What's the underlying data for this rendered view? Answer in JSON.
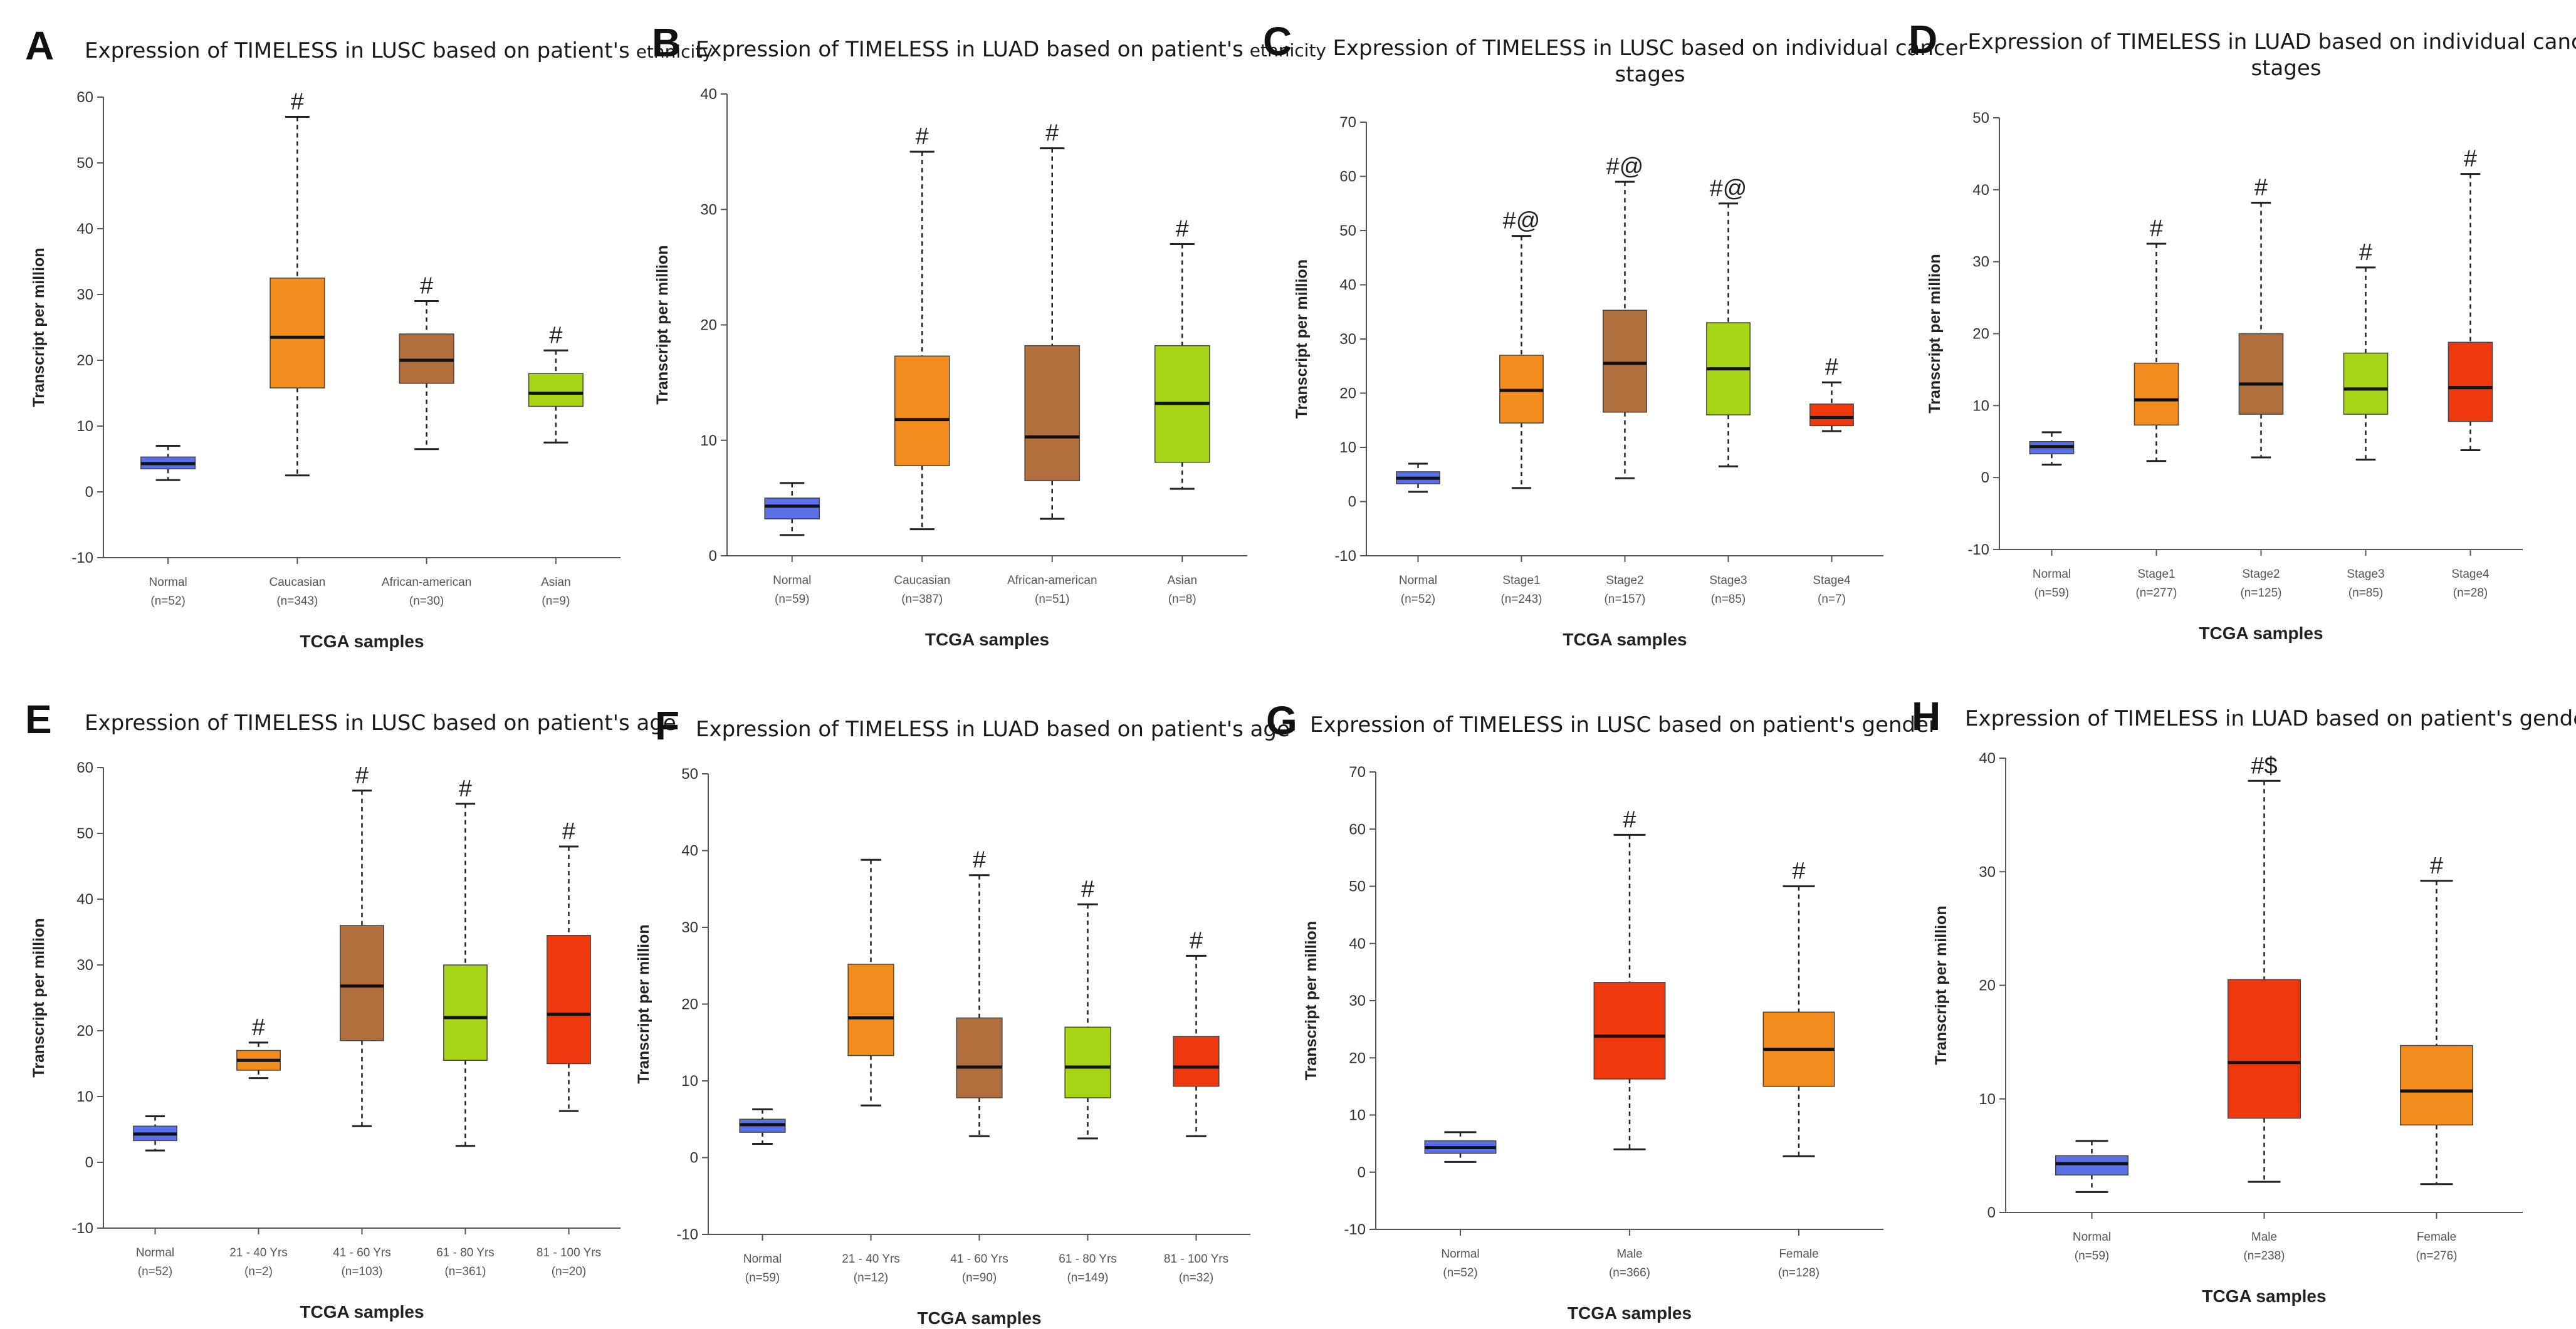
{
  "chart_data": [
    {
      "panel": "A",
      "title": "Expression of TIMELESS in LUSC based on patient's",
      "title_suffix": "ethnicity",
      "type": "box",
      "ylabel": "Transcript per million",
      "xlabel": "TCGA samples",
      "ylim": [
        -10,
        60
      ],
      "yticks": [
        -10,
        0,
        10,
        20,
        30,
        40,
        50,
        60
      ],
      "categories": [
        {
          "name": "Normal",
          "n": "(n=52)",
          "whisker_low": 1.8,
          "q1": 3.5,
          "median": 4.3,
          "q3": 5.3,
          "whisker_high": 7,
          "color": "#5b6fe6",
          "annotation": ""
        },
        {
          "name": "Caucasian",
          "n": "(n=343)",
          "whisker_low": 2.5,
          "q1": 15.8,
          "median": 23.5,
          "q3": 32.5,
          "whisker_high": 57,
          "color": "#f28c1c",
          "annotation": "#"
        },
        {
          "name": "African-american",
          "n": "(n=30)",
          "whisker_low": 6.5,
          "q1": 16.5,
          "median": 20,
          "q3": 24,
          "whisker_high": 29,
          "color": "#b06f3c",
          "annotation": "#"
        },
        {
          "name": "Asian",
          "n": "(n=9)",
          "whisker_low": 7.5,
          "q1": 13,
          "median": 15,
          "q3": 18,
          "whisker_high": 21.5,
          "color": "#a6d416",
          "annotation": "#"
        }
      ]
    },
    {
      "panel": "B",
      "title": "Expression of TIMELESS in LUAD based on patient's",
      "title_suffix": "ethnicity",
      "type": "box",
      "ylabel": "Transcript per million",
      "xlabel": "TCGA samples",
      "ylim": [
        0,
        40
      ],
      "yticks": [
        0,
        10,
        20,
        30,
        40
      ],
      "categories": [
        {
          "name": "Normal",
          "n": "(n=59)",
          "whisker_low": 1.8,
          "q1": 3.2,
          "median": 4.3,
          "q3": 5,
          "whisker_high": 6.3,
          "color": "#5b6fe6",
          "annotation": ""
        },
        {
          "name": "Caucasian",
          "n": "(n=387)",
          "whisker_low": 2.3,
          "q1": 7.8,
          "median": 11.8,
          "q3": 17.3,
          "whisker_high": 35,
          "color": "#f28c1c",
          "annotation": "#"
        },
        {
          "name": "African-american",
          "n": "(n=51)",
          "whisker_low": 3.2,
          "q1": 6.5,
          "median": 10.3,
          "q3": 18.2,
          "whisker_high": 35.3,
          "color": "#b06f3c",
          "annotation": "#"
        },
        {
          "name": "Asian",
          "n": "(n=8)",
          "whisker_low": 5.8,
          "q1": 8.1,
          "median": 13.2,
          "q3": 18.2,
          "whisker_high": 27,
          "color": "#a6d416",
          "annotation": "#"
        }
      ]
    },
    {
      "panel": "C",
      "title": "Expression of TIMELESS in LUSC based on individual cancer",
      "title_line2": "stages",
      "type": "box",
      "ylabel": "Transcript per million",
      "xlabel": "TCGA samples",
      "ylim": [
        -10,
        70
      ],
      "yticks": [
        -10,
        0,
        10,
        20,
        30,
        40,
        50,
        60,
        70
      ],
      "categories": [
        {
          "name": "Normal",
          "n": "(n=52)",
          "whisker_low": 1.8,
          "q1": 3.3,
          "median": 4.3,
          "q3": 5.5,
          "whisker_high": 7,
          "color": "#5b6fe6",
          "annotation": ""
        },
        {
          "name": "Stage1",
          "n": "(n=243)",
          "whisker_low": 2.5,
          "q1": 14.5,
          "median": 20.5,
          "q3": 27,
          "whisker_high": 49,
          "color": "#f28c1c",
          "annotation": "#@"
        },
        {
          "name": "Stage2",
          "n": "(n=157)",
          "whisker_low": 4.3,
          "q1": 16.5,
          "median": 25.5,
          "q3": 35.3,
          "whisker_high": 59,
          "color": "#b06f3c",
          "annotation": "#@"
        },
        {
          "name": "Stage3",
          "n": "(n=85)",
          "whisker_low": 6.5,
          "q1": 16,
          "median": 24.5,
          "q3": 33,
          "whisker_high": 55,
          "color": "#a6d416",
          "annotation": "#@"
        },
        {
          "name": "Stage4",
          "n": "(n=7)",
          "whisker_low": 13,
          "q1": 14,
          "median": 15.5,
          "q3": 18,
          "whisker_high": 22,
          "color": "#f0380e",
          "annotation": "#"
        }
      ]
    },
    {
      "panel": "D",
      "title": "Expression of TIMELESS in LUAD based on individual cancer",
      "title_line2": "stages",
      "type": "box",
      "ylabel": "Transcript per million",
      "xlabel": "TCGA samples",
      "ylim": [
        -10,
        50
      ],
      "yticks": [
        -10,
        0,
        10,
        20,
        30,
        40,
        50
      ],
      "categories": [
        {
          "name": "Normal",
          "n": "(n=59)",
          "whisker_low": 1.8,
          "q1": 3.3,
          "median": 4.3,
          "q3": 5,
          "whisker_high": 6.3,
          "color": "#5b6fe6",
          "annotation": ""
        },
        {
          "name": "Stage1",
          "n": "(n=277)",
          "whisker_low": 2.3,
          "q1": 7.3,
          "median": 10.8,
          "q3": 15.9,
          "whisker_high": 32.5,
          "color": "#f28c1c",
          "annotation": "#"
        },
        {
          "name": "Stage2",
          "n": "(n=125)",
          "whisker_low": 2.8,
          "q1": 8.8,
          "median": 13,
          "q3": 20,
          "whisker_high": 38.2,
          "color": "#b06f3c",
          "annotation": "#"
        },
        {
          "name": "Stage3",
          "n": "(n=85)",
          "whisker_low": 2.5,
          "q1": 8.8,
          "median": 12.3,
          "q3": 17.3,
          "whisker_high": 29.2,
          "color": "#a6d416",
          "annotation": "#"
        },
        {
          "name": "Stage4",
          "n": "(n=28)",
          "whisker_low": 3.8,
          "q1": 7.8,
          "median": 12.5,
          "q3": 18.8,
          "whisker_high": 42.2,
          "color": "#f0380e",
          "annotation": "#"
        }
      ]
    },
    {
      "panel": "E",
      "title": "Expression of TIMELESS in LUSC based on patient's age",
      "type": "box",
      "ylabel": "Transcript per million",
      "xlabel": "TCGA samples",
      "ylim": [
        -10,
        60
      ],
      "yticks": [
        -10,
        0,
        10,
        20,
        30,
        40,
        50,
        60
      ],
      "categories": [
        {
          "name": "Normal",
          "n": "(n=52)",
          "whisker_low": 1.8,
          "q1": 3.3,
          "median": 4.3,
          "q3": 5.5,
          "whisker_high": 7,
          "color": "#5b6fe6",
          "annotation": ""
        },
        {
          "name": "21 - 40 Yrs",
          "n": "(n=2)",
          "whisker_low": 12.8,
          "q1": 14,
          "median": 15.5,
          "q3": 17,
          "whisker_high": 18.2,
          "color": "#f28c1c",
          "annotation": "#"
        },
        {
          "name": "41 - 60 Yrs",
          "n": "(n=103)",
          "whisker_low": 5.5,
          "q1": 18.5,
          "median": 26.8,
          "q3": 36,
          "whisker_high": 56.5,
          "color": "#b06f3c",
          "annotation": "#"
        },
        {
          "name": "61 - 80 Yrs",
          "n": "(n=361)",
          "whisker_low": 2.5,
          "q1": 15.5,
          "median": 22,
          "q3": 30,
          "whisker_high": 54.5,
          "color": "#a6d416",
          "annotation": "#"
        },
        {
          "name": "81 - 100 Yrs",
          "n": "(n=20)",
          "whisker_low": 7.8,
          "q1": 15,
          "median": 22.5,
          "q3": 34.5,
          "whisker_high": 48,
          "color": "#f0380e",
          "annotation": "#"
        }
      ]
    },
    {
      "panel": "F",
      "title": "Expression of TIMELESS in LUAD based on patient's age",
      "type": "box",
      "ylabel": "Transcript per million",
      "xlabel": "TCGA samples",
      "ylim": [
        -10,
        50
      ],
      "yticks": [
        -10,
        0,
        10,
        20,
        30,
        40,
        50
      ],
      "categories": [
        {
          "name": "Normal",
          "n": "(n=59)",
          "whisker_low": 1.8,
          "q1": 3.3,
          "median": 4.3,
          "q3": 5,
          "whisker_high": 6.3,
          "color": "#5b6fe6",
          "annotation": ""
        },
        {
          "name": "21 - 40 Yrs",
          "n": "(n=12)",
          "whisker_low": 6.8,
          "q1": 13.3,
          "median": 18.2,
          "q3": 25.2,
          "whisker_high": 38.8,
          "color": "#f28c1c",
          "annotation": ""
        },
        {
          "name": "41 - 60 Yrs",
          "n": "(n=90)",
          "whisker_low": 2.8,
          "q1": 7.8,
          "median": 11.8,
          "q3": 18.2,
          "whisker_high": 36.8,
          "color": "#b06f3c",
          "annotation": "#"
        },
        {
          "name": "61 - 80 Yrs",
          "n": "(n=149)",
          "whisker_low": 2.5,
          "q1": 7.8,
          "median": 11.8,
          "q3": 17,
          "whisker_high": 33,
          "color": "#a6d416",
          "annotation": "#"
        },
        {
          "name": "81 - 100 Yrs",
          "n": "(n=32)",
          "whisker_low": 2.8,
          "q1": 9.3,
          "median": 11.8,
          "q3": 15.8,
          "whisker_high": 26.3,
          "color": "#f0380e",
          "annotation": "#"
        }
      ]
    },
    {
      "panel": "G",
      "title": "Expression of TIMELESS in LUSC based on patient's gender",
      "type": "box",
      "ylabel": "Transcript per million",
      "xlabel": "TCGA samples",
      "ylim": [
        -10,
        70
      ],
      "yticks": [
        -10,
        0,
        10,
        20,
        30,
        40,
        50,
        60,
        70
      ],
      "categories": [
        {
          "name": "Normal",
          "n": "(n=52)",
          "whisker_low": 1.8,
          "q1": 3.3,
          "median": 4.3,
          "q3": 5.5,
          "whisker_high": 7,
          "color": "#5b6fe6",
          "annotation": ""
        },
        {
          "name": "Male",
          "n": "(n=366)",
          "whisker_low": 4,
          "q1": 16.3,
          "median": 23.8,
          "q3": 33.2,
          "whisker_high": 59,
          "color": "#f0380e",
          "annotation": "#"
        },
        {
          "name": "Female",
          "n": "(n=128)",
          "whisker_low": 2.8,
          "q1": 15,
          "median": 21.5,
          "q3": 28,
          "whisker_high": 50,
          "color": "#f28c1c",
          "annotation": "#"
        }
      ]
    },
    {
      "panel": "H",
      "title": "Expression of TIMELESS in LUAD based on patient's gender",
      "type": "box",
      "ylabel": "Transcript per million",
      "xlabel": "TCGA samples",
      "ylim": [
        0,
        40
      ],
      "yticks": [
        0,
        10,
        20,
        30,
        40
      ],
      "categories": [
        {
          "name": "Normal",
          "n": "(n=59)",
          "whisker_low": 1.8,
          "q1": 3.3,
          "median": 4.3,
          "q3": 5,
          "whisker_high": 6.3,
          "color": "#5b6fe6",
          "annotation": ""
        },
        {
          "name": "Male",
          "n": "(n=238)",
          "whisker_low": 2.7,
          "q1": 8.3,
          "median": 13.2,
          "q3": 20.5,
          "whisker_high": 38,
          "color": "#f0380e",
          "annotation": "#$"
        },
        {
          "name": "Female",
          "n": "(n=276)",
          "whisker_low": 2.5,
          "q1": 7.7,
          "median": 10.7,
          "q3": 14.7,
          "whisker_high": 29.2,
          "color": "#f28c1c",
          "annotation": "#"
        }
      ]
    }
  ]
}
